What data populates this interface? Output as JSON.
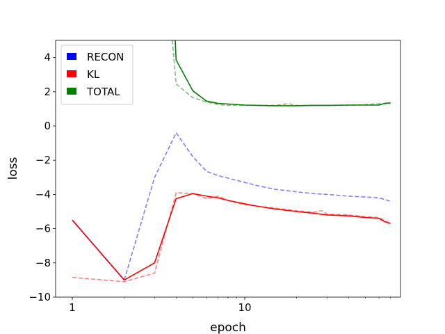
{
  "chart_data": {
    "type": "line",
    "title": "",
    "xlabel": "epoch",
    "ylabel": "loss",
    "xscale": "log",
    "xlim": [
      0.8,
      80
    ],
    "ylim": [
      -10,
      5
    ],
    "xticks": [
      1,
      10
    ],
    "xtick_labels": [
      "1",
      "10"
    ],
    "yticks": [
      -10,
      -8,
      -6,
      -4,
      -2,
      0,
      2,
      4
    ],
    "ytick_labels": [
      "−10",
      "−8",
      "−6",
      "−4",
      "−2",
      "0",
      "2",
      "4"
    ],
    "grid": false,
    "legend": {
      "placement": "top-left",
      "entries": [
        {
          "label": "RECON",
          "color": "#0000ff"
        },
        {
          "label": "KL",
          "color": "#ff0000"
        },
        {
          "label": "TOTAL",
          "color": "#008000"
        }
      ]
    },
    "series": [
      {
        "group": "RECON",
        "style": "dashed",
        "color": "#0000ff",
        "alpha": 0.5,
        "x": [
          2,
          3,
          4,
          5,
          6,
          7,
          8,
          10,
          12,
          15,
          20,
          25,
          30,
          40,
          50,
          60,
          70
        ],
        "y": [
          -9.0,
          -3.0,
          -0.4,
          -1.8,
          -2.65,
          -2.9,
          -3.05,
          -3.3,
          -3.5,
          -3.7,
          -3.85,
          -3.95,
          -4.0,
          -4.1,
          -4.15,
          -4.2,
          -4.4
        ]
      },
      {
        "group": "RECON",
        "style": "solid",
        "color": "#0000ff",
        "alpha": 1,
        "x": [
          1,
          2
        ],
        "y": [
          -5.5,
          -9.0
        ]
      },
      {
        "group": "KL",
        "style": "dashed",
        "color": "#ff0000",
        "alpha": 0.5,
        "x": [
          1,
          2,
          3,
          4,
          5,
          6,
          7,
          8,
          10,
          12,
          15,
          20,
          25,
          28,
          30,
          40,
          50,
          60,
          70
        ],
        "y": [
          -8.85,
          -9.1,
          -8.6,
          -3.9,
          -3.95,
          -4.25,
          -4.1,
          -4.35,
          -4.6,
          -4.7,
          -4.8,
          -4.95,
          -5.05,
          -4.95,
          -5.15,
          -5.2,
          -5.3,
          -5.35,
          -5.7
        ]
      },
      {
        "group": "KL",
        "style": "solid",
        "color": "#ff0000",
        "alpha": 1,
        "x": [
          1,
          2,
          3,
          4,
          5,
          6,
          7,
          8,
          10,
          12,
          15,
          20,
          25,
          30,
          40,
          50,
          60,
          65,
          70
        ],
        "y": [
          -5.5,
          -9.0,
          -8.0,
          -4.25,
          -3.95,
          -4.1,
          -4.2,
          -4.35,
          -4.55,
          -4.7,
          -4.85,
          -5.0,
          -5.1,
          -5.2,
          -5.25,
          -5.35,
          -5.4,
          -5.6,
          -5.7
        ]
      },
      {
        "group": "TOTAL",
        "style": "dashed",
        "color": "#008000",
        "alpha": 0.5,
        "x": [
          3.8,
          4,
          5,
          6,
          7,
          8,
          10,
          12,
          15,
          18,
          20,
          25,
          30,
          40,
          50,
          60,
          70
        ],
        "y": [
          5.0,
          2.45,
          1.65,
          1.4,
          1.25,
          1.2,
          1.2,
          1.2,
          1.2,
          1.3,
          1.2,
          1.2,
          1.2,
          1.2,
          1.25,
          1.3,
          1.3
        ]
      },
      {
        "group": "TOTAL",
        "style": "solid",
        "color": "#008000",
        "alpha": 1,
        "x": [
          3.95,
          4,
          5,
          6,
          7,
          8,
          10,
          12,
          15,
          20,
          25,
          30,
          40,
          50,
          60,
          65,
          70
        ],
        "y": [
          5.0,
          3.85,
          2.05,
          1.45,
          1.32,
          1.28,
          1.22,
          1.2,
          1.18,
          1.18,
          1.2,
          1.2,
          1.22,
          1.22,
          1.22,
          1.32,
          1.35
        ]
      }
    ]
  }
}
